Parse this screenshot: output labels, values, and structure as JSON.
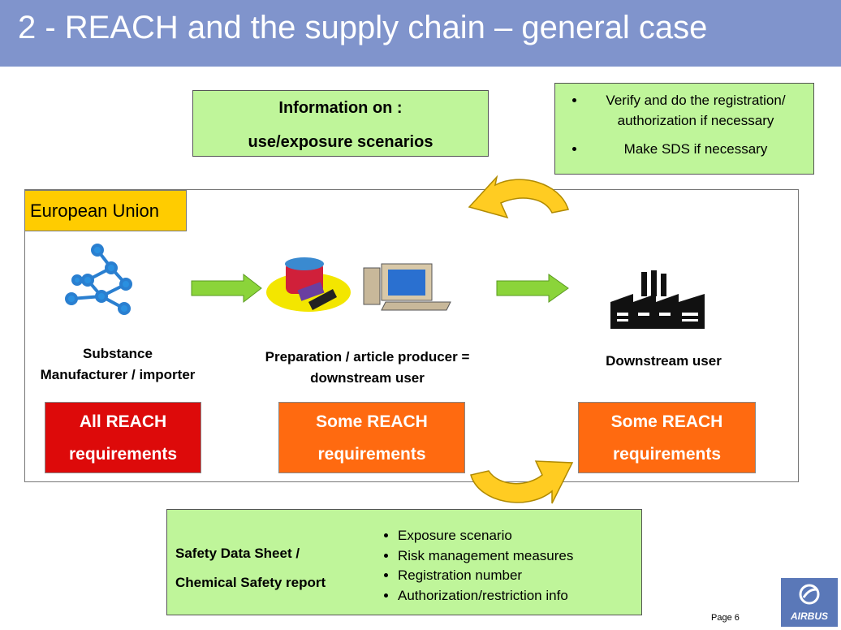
{
  "header": {
    "title": "2 - REACH and the supply chain – general case"
  },
  "info_box": {
    "lines": [
      "Information on :",
      "use/exposure scenarios"
    ]
  },
  "verify_box": {
    "bullets": [
      [
        "Verify and do the registration/",
        "authorization if necessary"
      ],
      [
        "Make SDS if necessary"
      ]
    ]
  },
  "region": {
    "label": "European Union"
  },
  "actors": [
    {
      "lines": [
        "Substance",
        "Manufacturer / importer"
      ],
      "requirement": [
        "All REACH",
        "requirements"
      ]
    },
    {
      "lines": [
        "Preparation / article producer =",
        "downstream user"
      ],
      "requirement": [
        "Some REACH",
        "requirements"
      ]
    },
    {
      "lines": [
        "Downstream user"
      ],
      "requirement": [
        "Some REACH",
        "requirements"
      ]
    }
  ],
  "sds_box": {
    "lines": [
      "Safety Data Sheet /",
      "Chemical Safety report"
    ],
    "bullets": [
      "Exposure scenario",
      "Risk management measures",
      "Registration number",
      "Authorization/restriction info"
    ]
  },
  "footer": {
    "page": "Page 6",
    "logo": "AIRBUS"
  }
}
